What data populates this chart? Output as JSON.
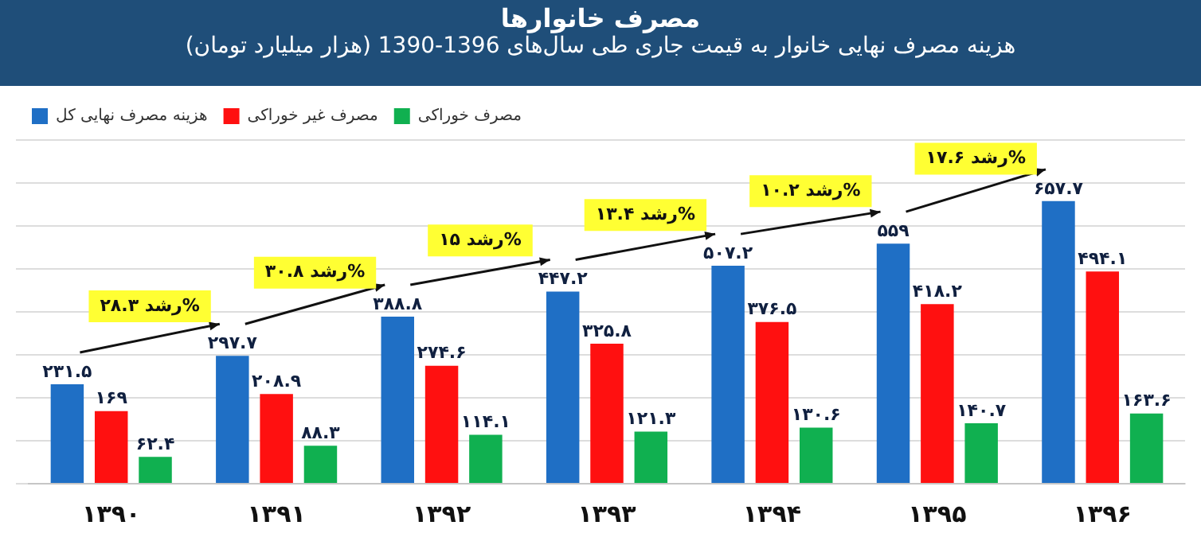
{
  "chart_data": {
    "type": "bar",
    "title": "مصرف خانوارها",
    "subtitle": "هزینه مصرف نهایی خانوار به قیمت جاری طی سال‌های 1396-1390 (هزار میلیارد تومان)",
    "categories": [
      "۱۳۹۰",
      "۱۳۹۱",
      "۱۳۹۲",
      "۱۳۹۳",
      "۱۳۹۴",
      "۱۳۹۵",
      "۱۳۹۶"
    ],
    "series": [
      {
        "name": "هزینه مصرف نهایی کل",
        "color": "#1f6fc5",
        "values": [
          231.5,
          297.7,
          388.8,
          447.2,
          507.2,
          559,
          657.7
        ],
        "value_labels": [
          "۲۳۱.۵",
          "۲۹۷.۷",
          "۳۸۸.۸",
          "۴۴۷.۲",
          "۵۰۷.۲",
          "۵۵۹",
          "۶۵۷.۷"
        ]
      },
      {
        "name": "مصرف غیر خوراکی",
        "color": "#ff1010",
        "values": [
          169,
          208.9,
          274.6,
          325.8,
          376.5,
          418.2,
          494.1
        ],
        "value_labels": [
          "۱۶۹",
          "۲۰۸.۹",
          "۲۷۴.۶",
          "۳۲۵.۸",
          "۳۷۶.۵",
          "۴۱۸.۲",
          "۴۹۴.۱"
        ]
      },
      {
        "name": "مصرف خوراکی",
        "color": "#10b050",
        "values": [
          62.4,
          88.3,
          114.1,
          121.3,
          130.6,
          140.7,
          163.6
        ],
        "value_labels": [
          "۶۲.۴",
          "۸۸.۳",
          "۱۱۴.۱",
          "۱۲۱.۳",
          "۱۳۰.۶",
          "۱۴۰.۷",
          "۱۶۳.۶"
        ]
      }
    ],
    "annotations": [
      "رشد ۲۸.۳%",
      "رشد ۳۰.۸%",
      "رشد ۱۵%",
      "رشد ۱۳.۴%",
      "رشد ۱۰.۲%",
      "رشد ۱۷.۶%"
    ],
    "ylim": [
      0,
      800
    ],
    "yticks": [
      {
        "value": 0,
        "label": null
      },
      {
        "value": 100,
        "label": null
      },
      {
        "value": 200,
        "label": null
      },
      {
        "value": 300,
        "label": null
      },
      {
        "value": 400,
        "label": null
      },
      {
        "value": 500,
        "label": null
      },
      {
        "value": 600,
        "label": null
      },
      {
        "value": 700,
        "label": null
      },
      {
        "value": 800,
        "label": null
      }
    ],
    "tick_labels": "x",
    "grid": "y",
    "legend": "top left"
  }
}
